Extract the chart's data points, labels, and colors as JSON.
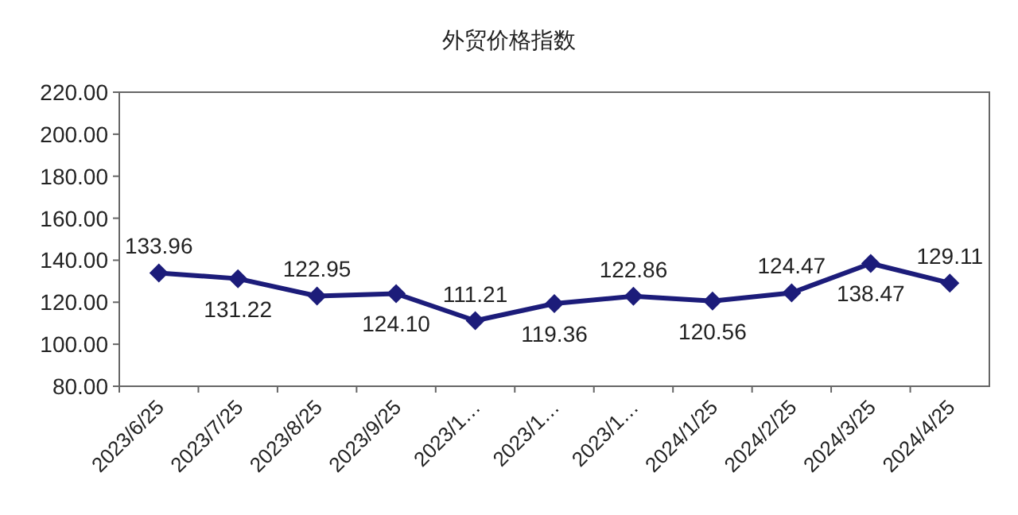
{
  "chart_data": {
    "type": "line",
    "title": "外贸价格指数",
    "categories": [
      "2023/6/25",
      "2023/7/25",
      "2023/8/25",
      "2023/9/25",
      "2023/1…",
      "2023/1…",
      "2023/1…",
      "2024/1/25",
      "2024/2/25",
      "2024/3/25",
      "2024/4/25"
    ],
    "series": [
      {
        "color": "#1c1c7a",
        "values": [
          133.96,
          131.22,
          122.95,
          124.1,
          111.21,
          119.36,
          122.86,
          120.56,
          124.47,
          138.47,
          129.11
        ]
      }
    ],
    "ylim": [
      80,
      220
    ],
    "yticks": [
      {
        "value": 80,
        "label": "80.00"
      },
      {
        "value": 100,
        "label": "100.00"
      },
      {
        "value": 120,
        "label": "120.00"
      },
      {
        "value": 140,
        "label": "140.00"
      },
      {
        "value": 160,
        "label": "160.00"
      },
      {
        "value": 180,
        "label": "180.00"
      },
      {
        "value": 200,
        "label": "200.00"
      },
      {
        "value": 220,
        "label": "220.00"
      }
    ],
    "value_labels": [
      "133.96",
      "131.22",
      "122.95",
      "124.10",
      "111.21",
      "119.36",
      "122.86",
      "120.56",
      "124.47",
      "138.47",
      "129.11"
    ],
    "marker": "diamond",
    "grid": false
  }
}
